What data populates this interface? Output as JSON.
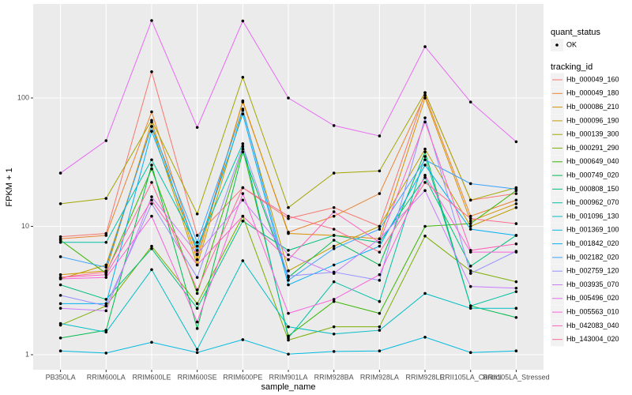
{
  "chart_data": {
    "type": "line",
    "x_label": "sample_name",
    "y_label": "FPKM + 1",
    "log_y": true,
    "grid": true,
    "ylim": [
      0.764,
      540
    ],
    "yticks": [
      1,
      10,
      100
    ],
    "point_color": "#000000",
    "shape_legend": {
      "title": "quant_status",
      "labels": [
        "OK"
      ]
    },
    "color_legend_title": "tracking_id",
    "categories": [
      "PB350LA",
      "RRIM600LA",
      "RRIM600LE",
      "RRIM600SE",
      "RRIM600PE",
      "RRIM901LA",
      "RRIM928BA",
      "RRIM928LA",
      "RRIM928LE",
      "RRII105LA_Control",
      "RRII105LA_Stressed"
    ],
    "series": [
      {
        "name": "Hb_000049_160",
        "color": "#F8766D",
        "values": [
          8.3,
          8.8,
          160,
          8.5,
          20,
          11.5,
          14,
          10,
          110,
          16,
          18
        ]
      },
      {
        "name": "Hb_000049_180",
        "color": "#EA8331",
        "values": [
          8,
          8.5,
          78,
          6,
          93,
          9,
          12,
          18,
          105,
          12,
          16
        ]
      },
      {
        "name": "Hb_000086_210",
        "color": "#D89000",
        "values": [
          4.2,
          4.5,
          65,
          5.5,
          95,
          8.8,
          8.5,
          8,
          100,
          11,
          15
        ]
      },
      {
        "name": "Hb_000096_190",
        "color": "#C09B00",
        "values": [
          3.9,
          5,
          60,
          5,
          80,
          4.5,
          7,
          10,
          40,
          10,
          14
        ]
      },
      {
        "name": "Hb_000139_300",
        "color": "#A3A500",
        "values": [
          15,
          16.5,
          67,
          12.5,
          145,
          14,
          26,
          27,
          110,
          16,
          20
        ]
      },
      {
        "name": "Hb_000291_290",
        "color": "#7CAE00",
        "values": [
          1.7,
          2.4,
          7,
          2.5,
          12,
          1.3,
          1.65,
          1.65,
          8.4,
          4.5,
          3.7
        ]
      },
      {
        "name": "Hb_000649_040",
        "color": "#39B600",
        "values": [
          7.8,
          4.3,
          28,
          3,
          40,
          1.4,
          2.6,
          2.1,
          10,
          10.5,
          19
        ]
      },
      {
        "name": "Hb_000749_020",
        "color": "#00BB4E",
        "values": [
          1.35,
          1.55,
          30,
          1.6,
          38,
          4,
          7.8,
          5,
          38,
          2.4,
          1.95
        ]
      },
      {
        "name": "Hb_000808_150",
        "color": "#00BF7D",
        "values": [
          3.5,
          2.7,
          6.7,
          2.3,
          11,
          6.5,
          8.5,
          7.5,
          24,
          4.9,
          8.5
        ]
      },
      {
        "name": "Hb_000962_070",
        "color": "#00C1A3",
        "values": [
          7.5,
          7.5,
          33,
          7,
          44,
          1.35,
          3.7,
          2.6,
          35,
          2.4,
          3.1
        ]
      },
      {
        "name": "Hb_001096_130",
        "color": "#00BFC4",
        "values": [
          1.75,
          1.5,
          4.6,
          1.1,
          5.4,
          1.65,
          1.45,
          1.55,
          3,
          2.3,
          2.3
        ]
      },
      {
        "name": "Hb_001369_100",
        "color": "#00BAE0",
        "values": [
          1.07,
          1.03,
          1.25,
          1.04,
          1.31,
          1.01,
          1.06,
          1.07,
          1.37,
          1.04,
          1.07
        ]
      },
      {
        "name": "Hb_001842_020",
        "color": "#00B0F6",
        "values": [
          2.5,
          2.5,
          55,
          6.5,
          75,
          3.5,
          5,
          7,
          30,
          9.5,
          8.5
        ]
      },
      {
        "name": "Hb_002182_020",
        "color": "#35A2FF",
        "values": [
          5.8,
          4.8,
          60,
          7.5,
          82,
          3.8,
          6.7,
          9.5,
          33,
          21.5,
          19.5
        ]
      },
      {
        "name": "Hb_002759_120",
        "color": "#9590FF",
        "values": [
          2.9,
          2.4,
          15,
          4,
          42,
          4.1,
          4.4,
          3.8,
          70,
          4.3,
          6.4
        ]
      },
      {
        "name": "Hb_003935_070",
        "color": "#C77CFF",
        "values": [
          2.3,
          2.2,
          17,
          6.1,
          16,
          6,
          4.3,
          8,
          19,
          3.4,
          3.3
        ]
      },
      {
        "name": "Hb_005496_020",
        "color": "#E76BF3",
        "values": [
          26,
          46.5,
          401,
          59,
          398,
          100,
          61,
          50.6,
          251,
          93,
          45.6
        ]
      },
      {
        "name": "Hb_005563_010",
        "color": "#FA62DB",
        "values": [
          3.9,
          4,
          12,
          1.8,
          18,
          2.1,
          2.7,
          4.2,
          25,
          6.3,
          6.3
        ]
      },
      {
        "name": "Hb_042083_040",
        "color": "#FF62BC",
        "values": [
          4,
          4.2,
          16,
          5,
          12,
          5.5,
          13,
          7.5,
          65,
          6.5,
          7.3
        ]
      },
      {
        "name": "Hb_143004_020",
        "color": "#FF6C91",
        "values": [
          4,
          4.4,
          22,
          3.2,
          20,
          12,
          9.5,
          6.3,
          22,
          11.5,
          10.5
        ]
      }
    ]
  }
}
